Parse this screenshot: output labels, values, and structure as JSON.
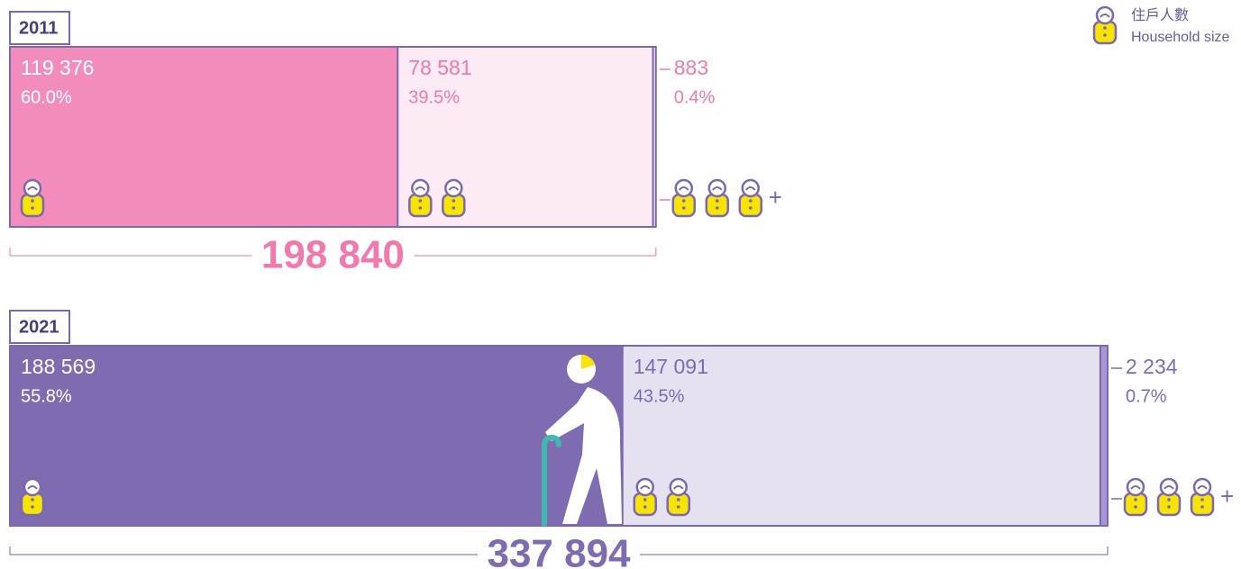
{
  "chart_data": [
    {
      "type": "stacked-bar",
      "title": "2011",
      "values": [
        119376,
        78581,
        883
      ],
      "value_labels": [
        "119 376",
        "78 581",
        "883"
      ],
      "percents": [
        "60.0%",
        "39.5%",
        "0.4%"
      ],
      "total": 198840,
      "total_label": "198 840",
      "colors": [
        "#f28cba",
        "#fcebf4",
        "#fcebf4"
      ],
      "text_colors": [
        "#ffffff",
        "#f07aae",
        "#f07aae"
      ],
      "accent": "#f07aae"
    },
    {
      "type": "stacked-bar",
      "title": "2021",
      "values": [
        188569,
        147091,
        2234
      ],
      "value_labels": [
        "188 569",
        "147 091",
        "2 234"
      ],
      "percents": [
        "55.8%",
        "43.5%",
        "0.7%"
      ],
      "total": 337894,
      "total_label": "337 894",
      "colors": [
        "#7e6bb0",
        "#e6e1f1",
        "#a796cf"
      ],
      "text_colors": [
        "#ffffff",
        "#7e6bb0",
        "#7e6bb0"
      ],
      "accent": "#7e6bb0"
    }
  ],
  "legend": {
    "title_zh": "住戶人數",
    "title_en": "Household size"
  },
  "more_label": "+"
}
